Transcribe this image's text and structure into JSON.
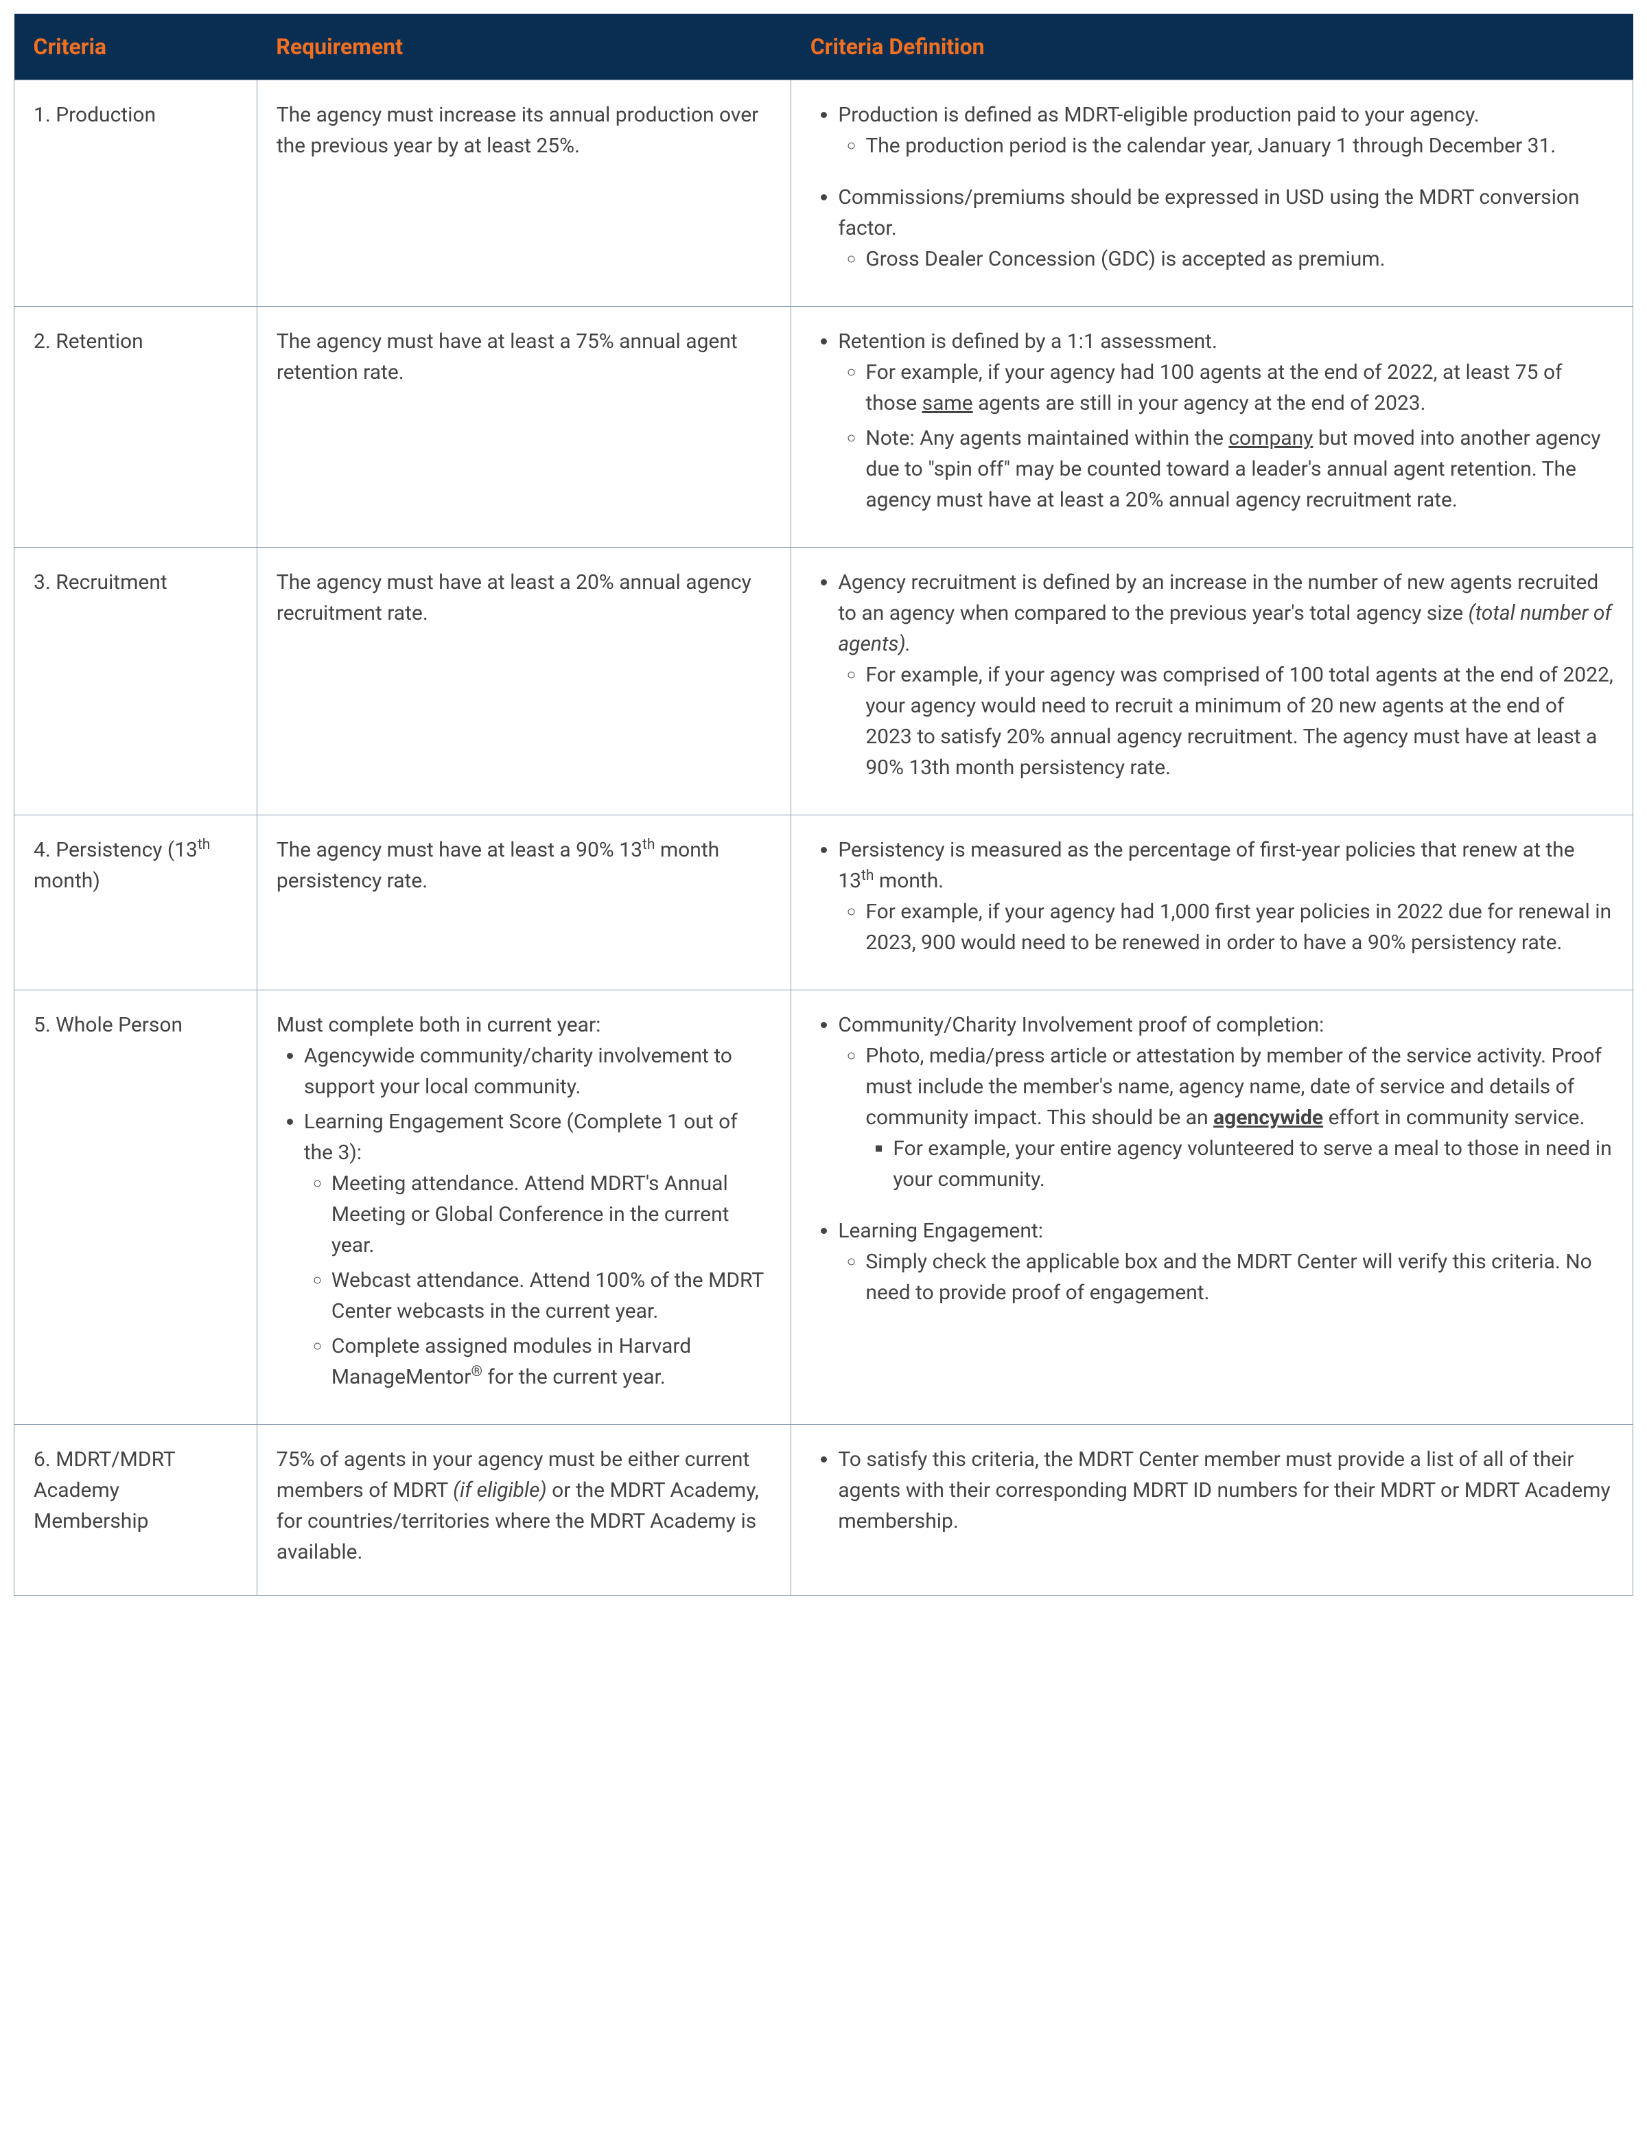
{
  "colors": {
    "header_bg": "#0a2e52",
    "header_text": "#f37021",
    "border": "#8a9bb0",
    "body_text": "#444444",
    "page_bg": "#ffffff"
  },
  "headers": {
    "criteria": "Criteria",
    "requirement": "Requirement",
    "definition": "Criteria Definition"
  },
  "rows": {
    "r1": {
      "criteria": "1. Production",
      "requirement": "The agency must increase its annual production over the previous year by at least 25%.",
      "def_b1": "Production is defined as MDRT-eligible production paid to your agency.",
      "def_b1a": "The production period is the calendar year, January 1 through December 31.",
      "def_b2": "Commissions/premiums should be expressed in USD using the MDRT conversion factor.",
      "def_b2a": "Gross Dealer Concession (GDC) is accepted as premium."
    },
    "r2": {
      "criteria": "2. Retention",
      "requirement": "The agency must have at least a 75% annual agent retention rate.",
      "def_b1": "Retention is defined by a 1:1 assessment.",
      "def_b1a_pre": "For example, if your agency had 100 agents at the end of 2022, at least 75 of those ",
      "def_b1a_u": "same",
      "def_b1a_post": " agents are still in your agency at the end of 2023.",
      "def_b1b_pre": "Note: Any agents maintained within the ",
      "def_b1b_u": "company",
      "def_b1b_post": " but moved into another agency due to \"spin off\" may be counted toward a leader's annual agent retention. The agency must have at least a 20% annual agency recruitment rate."
    },
    "r3": {
      "criteria": "3. Recruitment",
      "requirement": "The agency must have at least a 20% annual agency recruitment rate.",
      "def_b1_pre": "Agency recruitment is defined by an increase in the number of new agents recruited to an agency when compared to the previous year's total agency size ",
      "def_b1_it": "(total number of agents).",
      "def_b1a": "For example, if your agency was comprised of 100 total agents at the end of 2022, your agency would need to recruit a minimum of 20 new agents at the end of 2023 to satisfy 20% annual agency recruitment. The agency must have at least a 90% 13th month persistency rate."
    },
    "r4": {
      "criteria_pre": "4. Persistency (13",
      "criteria_sup": "th",
      "criteria_post": " month)",
      "req_pre": "The agency must have at least a 90% 13",
      "req_sup": "th",
      "req_post": " month persistency rate.",
      "def_b1_pre": "Persistency is measured as the percentage of first-year policies that renew at the 13",
      "def_b1_sup": "th",
      "def_b1_post": " month.",
      "def_b1a": "For example, if your agency had 1,000 first year policies in 2022 due for renewal in 2023, 900 would need to be renewed in order to have a 90% persistency rate."
    },
    "r5": {
      "criteria": "5. Whole Person",
      "req_intro": "Must complete both in current year:",
      "req_b1": "Agencywide community/charity involvement to support your local community.",
      "req_b2": "Learning Engagement Score (Complete 1 out of the 3):",
      "req_b2a": "Meeting attendance. Attend MDRT's Annual Meeting or Global Conference in the current year.",
      "req_b2b": "Webcast attendance. Attend 100% of the MDRT Center webcasts in the current year.",
      "req_b2c_pre": "Complete assigned modules in Harvard ManageMentor",
      "req_b2c_sup": "®",
      "req_b2c_post": " for the current year.",
      "def_b1": "Community/Charity Involvement proof of completion:",
      "def_b1a_pre": "Photo, media/press article or attestation by member of the service activity. Proof must include the member's name, agency name, date of service and details of community impact. This should be an ",
      "def_b1a_bu": "agencywide",
      "def_b1a_post": " effort in community service.",
      "def_b1a_i": "For example, your entire agency volunteered to serve a meal to those in need in your community.",
      "def_b2": "Learning Engagement:",
      "def_b2a": "Simply check the applicable box and the MDRT Center will verify this criteria. No need to provide proof of engagement."
    },
    "r6": {
      "criteria": "6. MDRT/MDRT Academy Membership",
      "req_pre": "75% of agents in your agency must be either current members of MDRT ",
      "req_it": "(if eligible)",
      "req_post": " or the MDRT Academy, for countries/territories where the MDRT Academy is available.",
      "def_b1": "To satisfy this criteria, the MDRT Center member must provide a list of all of their agents with their corresponding MDRT ID numbers for their MDRT or MDRT Academy membership."
    }
  }
}
